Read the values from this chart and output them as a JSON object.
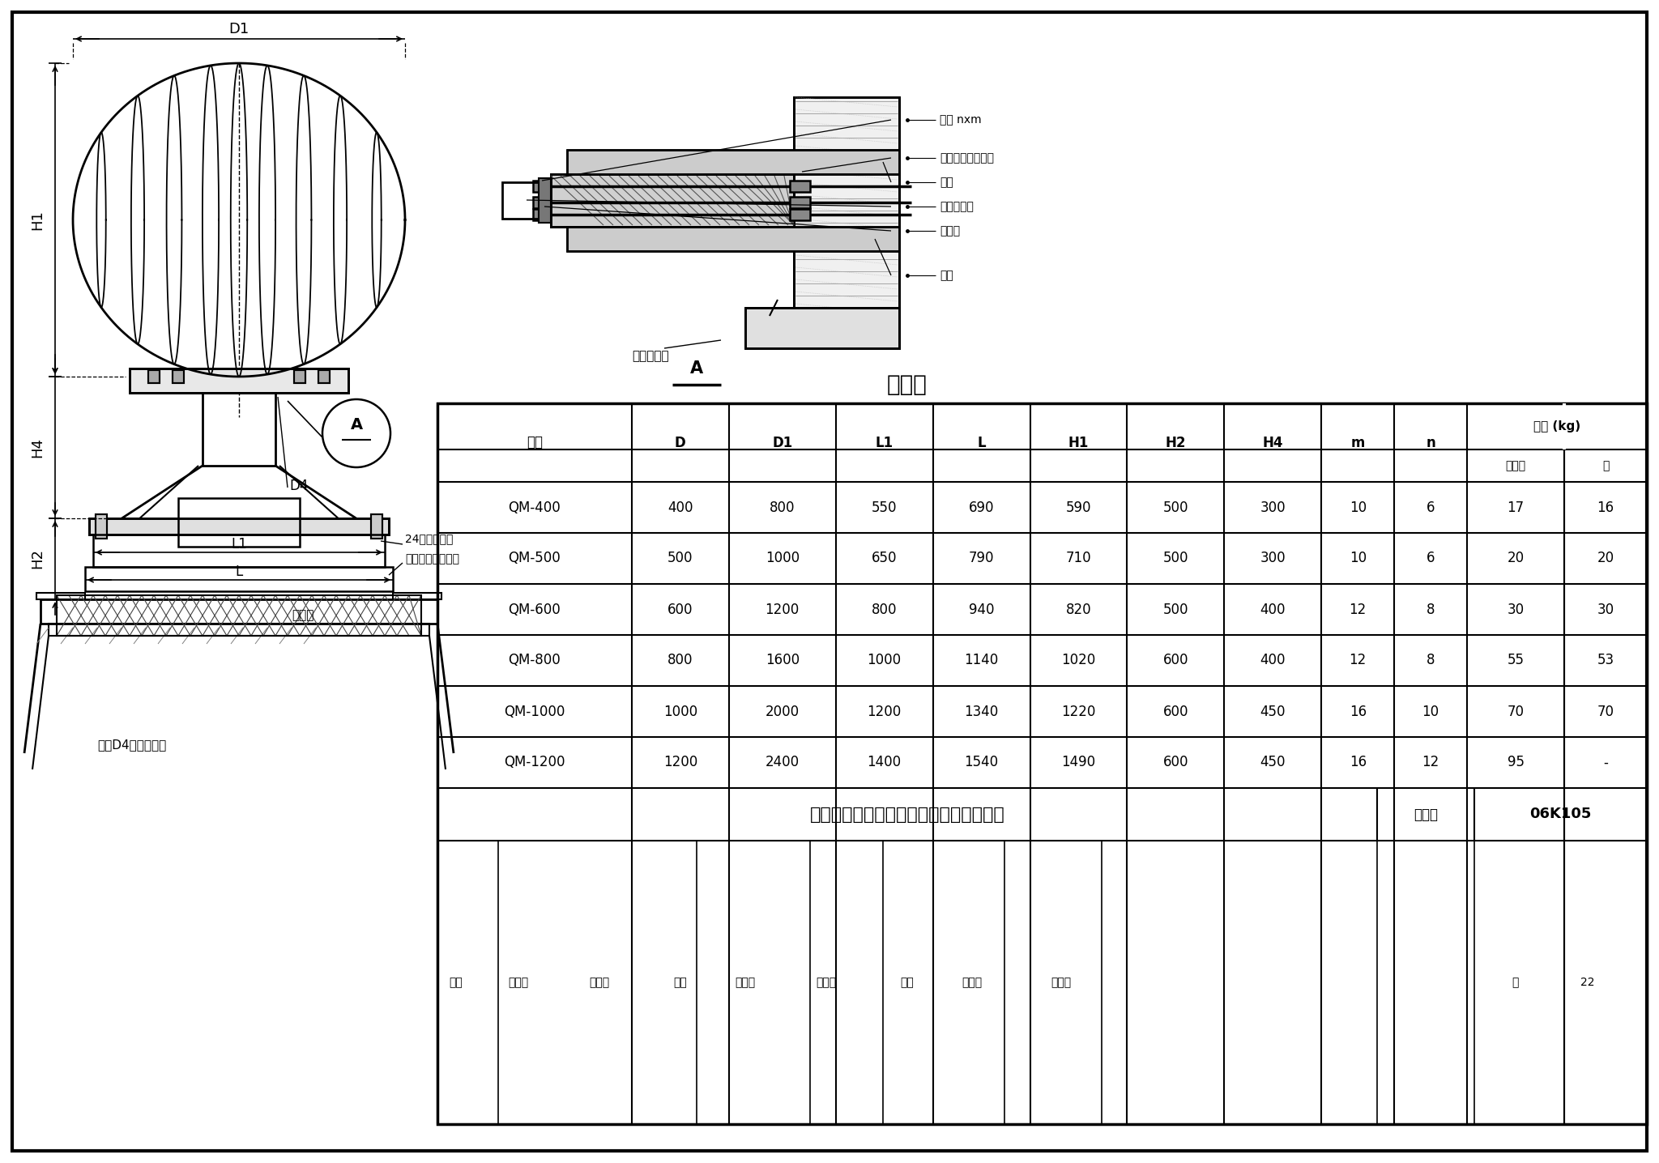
{
  "title": "旋流型屋顶自然通风器混凝土屋脊上安装",
  "figure_number": "06K105",
  "page": "22",
  "table_title": "尺寸表",
  "table_rows": [
    [
      "QM-400",
      "400",
      "800",
      "550",
      "690",
      "590",
      "500",
      "300",
      "10",
      "6",
      "17",
      "16"
    ],
    [
      "QM-500",
      "500",
      "1000",
      "650",
      "790",
      "710",
      "500",
      "300",
      "10",
      "6",
      "20",
      "20"
    ],
    [
      "QM-600",
      "600",
      "1200",
      "800",
      "940",
      "820",
      "500",
      "400",
      "12",
      "8",
      "30",
      "30"
    ],
    [
      "QM-800",
      "800",
      "1600",
      "1000",
      "1140",
      "1020",
      "600",
      "400",
      "12",
      "8",
      "55",
      "53"
    ],
    [
      "QM-1000",
      "1000",
      "2000",
      "1200",
      "1340",
      "1220",
      "600",
      "450",
      "16",
      "10",
      "70",
      "70"
    ],
    [
      "QM-1200",
      "1200",
      "2400",
      "1400",
      "1540",
      "1490",
      "600",
      "450",
      "16",
      "12",
      "95",
      "-"
    ]
  ],
  "right_labels": [
    "螺栓 nxm",
    "孔隙内填入油腻子",
    "垫圈",
    "旋流通风器",
    "橡胶圈",
    "垫圈"
  ],
  "bg_color": "#ffffff",
  "line_color": "#000000"
}
